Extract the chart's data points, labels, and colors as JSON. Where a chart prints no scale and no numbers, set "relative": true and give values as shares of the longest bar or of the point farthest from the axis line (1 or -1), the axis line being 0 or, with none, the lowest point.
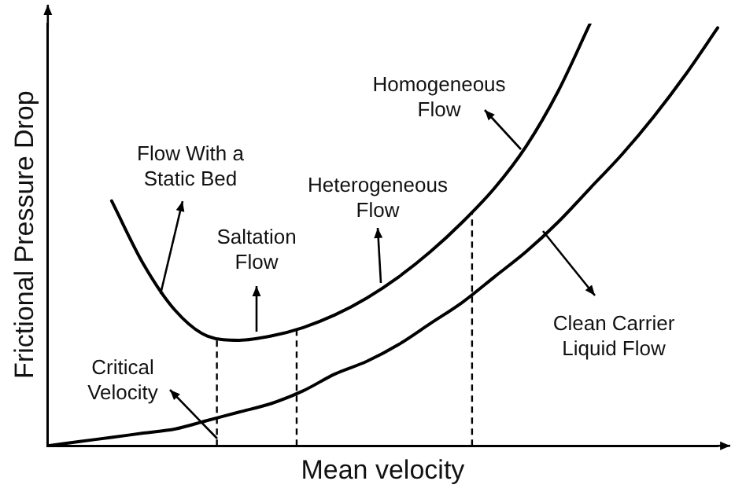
{
  "chart_data": {
    "type": "line",
    "relative": true,
    "xlabel": "Mean velocity",
    "ylabel": "Frictional Pressure Drop",
    "categories": [
      null,
      null,
      null,
      null,
      null,
      null,
      null,
      null,
      null,
      null,
      null,
      null,
      null,
      null,
      null,
      null,
      null,
      null,
      null,
      null,
      null,
      null
    ],
    "series": [
      {
        "color": "#000000",
        "values": [
          null,
          null,
          0.58,
          0.43,
          0.32,
          0.26,
          0.25,
          0.26,
          0.28,
          0.31,
          0.35,
          0.4,
          0.46,
          0.53,
          0.61,
          0.71,
          0.84,
          1,
          null,
          null,
          null,
          null
        ]
      },
      {
        "color": "#000000",
        "values": [
          0,
          0.01,
          0.02,
          0.03,
          0.04,
          0.06,
          0.08,
          0.1,
          0.13,
          0.17,
          0.2,
          0.24,
          0.29,
          0.34,
          0.4,
          0.46,
          0.53,
          0.61,
          0.69,
          0.78,
          0.88,
          0.99
        ]
      }
    ],
    "annotations": [
      "Flow With a Static Bed",
      "Saltation Flow",
      "Heterogeneous Flow",
      "Homogeneous Flow",
      "Critical Velocity",
      "Clean Carrier Liquid Flow"
    ],
    "grid": false,
    "legend": false,
    "marker": "none",
    "line_style": "solid"
  }
}
